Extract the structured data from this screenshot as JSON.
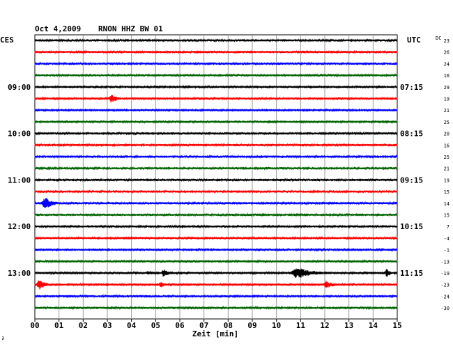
{
  "header": {
    "date": "Oct 4,2009",
    "station": "RNON HHZ BW 01",
    "left_zone": "CES",
    "right_zone": "UTC",
    "dc_label": "DC"
  },
  "chart_data": {
    "type": "line",
    "title": "RNON HHZ BW 01",
    "xlabel": "Zeit [min]",
    "xlim": [
      0,
      15
    ],
    "x_ticks": [
      "00",
      "01",
      "02",
      "03",
      "04",
      "05",
      "06",
      "07",
      "08",
      "09",
      "10",
      "11",
      "12",
      "13",
      "14",
      "15"
    ],
    "left_hour_labels": [
      {
        "row": 4,
        "label": "09:00"
      },
      {
        "row": 8,
        "label": "10:00"
      },
      {
        "row": 12,
        "label": "11:00"
      },
      {
        "row": 16,
        "label": "12:00"
      },
      {
        "row": 20,
        "label": "13:00"
      }
    ],
    "right_hour_labels": [
      {
        "row": 4,
        "label": "07:15"
      },
      {
        "row": 8,
        "label": "08:15"
      },
      {
        "row": 12,
        "label": "09:15"
      },
      {
        "row": 16,
        "label": "10:15"
      },
      {
        "row": 20,
        "label": "11:15"
      }
    ],
    "dc_offsets": [
      "23",
      "26",
      "24",
      "16",
      "29",
      "19",
      "21",
      "25",
      "20",
      "16",
      "25",
      "21",
      "19",
      "15",
      "14",
      "15",
      "7",
      "-4",
      "-1",
      "-13",
      "-19",
      "-23",
      "-24",
      "-30"
    ],
    "trace_colors": [
      "#000000",
      "#ff0000",
      "#0000ff",
      "#006400"
    ],
    "events": [
      {
        "row": 5,
        "start_min": 3.05,
        "duration_min": 0.9,
        "amplitude": 7
      },
      {
        "row": 14,
        "start_min": 0.25,
        "duration_min": 1.2,
        "amplitude": 10
      },
      {
        "row": 20,
        "start_min": 4.5,
        "duration_min": 1.5,
        "amplitude": 3
      },
      {
        "row": 20,
        "start_min": 5.2,
        "duration_min": 1.0,
        "amplitude": 6
      },
      {
        "row": 20,
        "start_min": 10.55,
        "duration_min": 2.3,
        "amplitude": 9
      },
      {
        "row": 20,
        "start_min": 14.5,
        "duration_min": 0.5,
        "amplitude": 8
      },
      {
        "row": 21,
        "start_min": 0.05,
        "duration_min": 1.0,
        "amplitude": 8
      },
      {
        "row": 21,
        "start_min": 5.1,
        "duration_min": 0.8,
        "amplitude": 5
      },
      {
        "row": 21,
        "start_min": 11.9,
        "duration_min": 1.2,
        "amplitude": 6
      }
    ],
    "grid": true,
    "corner_mark": "ג"
  }
}
